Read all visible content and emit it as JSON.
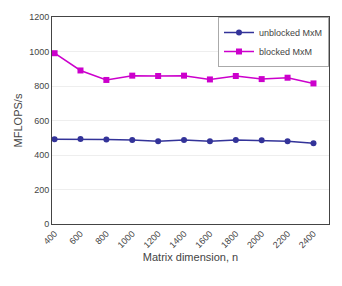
{
  "chart_data": {
    "type": "line",
    "x_label": "Matrix dimension, n",
    "y_label": "MFLOPS/s",
    "x": [
      400,
      600,
      800,
      1000,
      1200,
      1400,
      1600,
      1800,
      2000,
      2200,
      2400
    ],
    "series": [
      {
        "name": "unblocked MxM",
        "color": "#333399",
        "marker": "circle",
        "values": [
          492,
          493,
          490,
          487,
          480,
          487,
          480,
          487,
          485,
          480,
          468
        ]
      },
      {
        "name": "blocked MxM",
        "color": "#cc00cc",
        "marker": "square",
        "values": [
          990,
          890,
          835,
          860,
          858,
          860,
          838,
          858,
          840,
          848,
          815
        ]
      }
    ],
    "xlim": [
      380,
      2520
    ],
    "ylim": [
      0,
      1200
    ],
    "xticks": [
      400,
      600,
      800,
      1000,
      1200,
      1400,
      1600,
      1800,
      2000,
      2200,
      2400
    ],
    "yticks": [
      0,
      200,
      400,
      600,
      800,
      1000,
      1200
    ],
    "grid": "y",
    "legend": "upper right"
  }
}
